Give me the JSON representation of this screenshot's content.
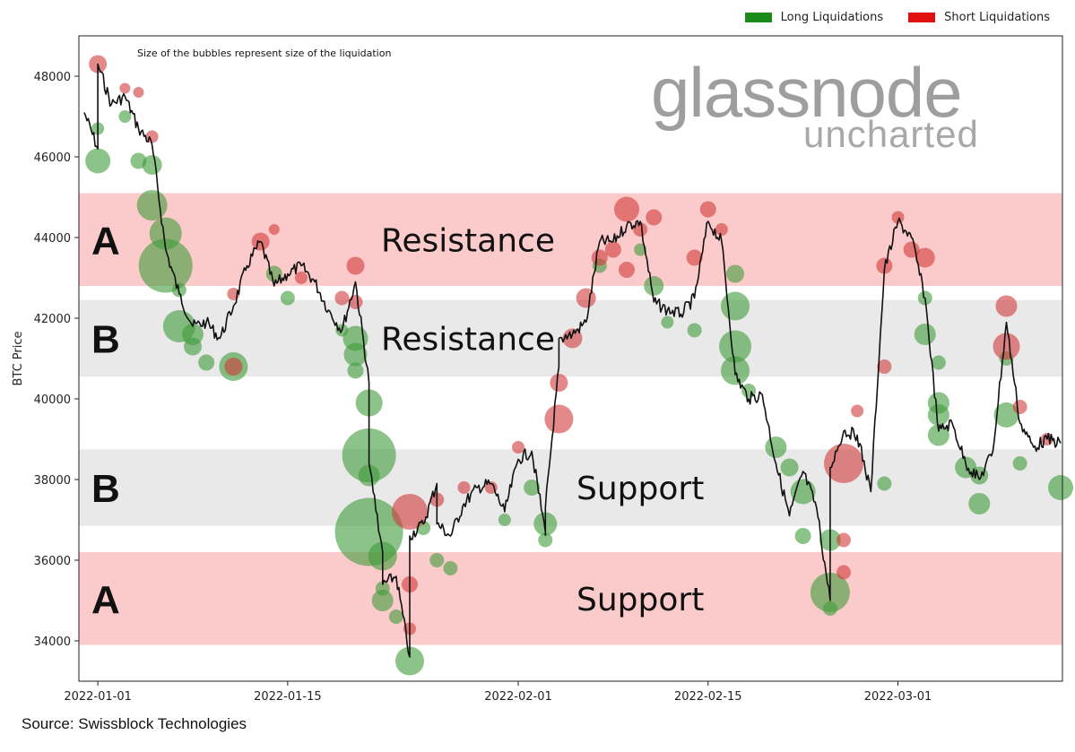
{
  "legend": {
    "long_label": "Long Liquidations",
    "short_label": "Short Liquidations",
    "long_color": "#1a8a1a",
    "short_color": "#e01010"
  },
  "note": "Size of the bubbles represent size of the liquidation",
  "watermark": {
    "line1": "glassnode",
    "line2": "uncharted"
  },
  "source": "Source: Swissblock Technologies",
  "chart_data": {
    "type": "scatter",
    "ylabel": "BTC Price",
    "xlabel": "",
    "ylim": [
      33000,
      49000
    ],
    "xlim": [
      "2021-12-31",
      "2022-03-13"
    ],
    "x_ticks": [
      "2022-01-01",
      "2022-01-15",
      "2022-02-01",
      "2022-02-15",
      "2022-03-01"
    ],
    "y_ticks": [
      34000,
      36000,
      38000,
      40000,
      42000,
      44000,
      46000,
      48000
    ],
    "zones": [
      {
        "label": "A",
        "text": "Resistance",
        "from": 42800,
        "to": 45100,
        "color": "#fbcaca"
      },
      {
        "label": "B",
        "text": "Resistance",
        "from": 40550,
        "to": 42450,
        "color": "#e9e9e9"
      },
      {
        "label": "B",
        "text": "Support",
        "from": 36850,
        "to": 38750,
        "color": "#e9e9e9"
      },
      {
        "label": "A",
        "text": "Support",
        "from": 33900,
        "to": 36200,
        "color": "#fbcaca"
      }
    ],
    "price_series": {
      "name": "BTC Price",
      "points": [
        [
          "2021-12-31",
          47100
        ],
        [
          "2022-01-01",
          46200
        ],
        [
          "2022-01-01",
          48300
        ],
        [
          "2022-01-02",
          47300
        ],
        [
          "2022-01-03",
          47500
        ],
        [
          "2022-01-04",
          46700
        ],
        [
          "2022-01-05",
          46300
        ],
        [
          "2022-01-06",
          43700
        ],
        [
          "2022-01-07",
          42600
        ],
        [
          "2022-01-08",
          41800
        ],
        [
          "2022-01-09",
          41900
        ],
        [
          "2022-01-10",
          41500
        ],
        [
          "2022-01-11",
          42300
        ],
        [
          "2022-01-12",
          43300
        ],
        [
          "2022-01-13",
          43900
        ],
        [
          "2022-01-14",
          42800
        ],
        [
          "2022-01-15",
          43100
        ],
        [
          "2022-01-16",
          43300
        ],
        [
          "2022-01-17",
          42900
        ],
        [
          "2022-01-18",
          42200
        ],
        [
          "2022-01-19",
          41700
        ],
        [
          "2022-01-20",
          42900
        ],
        [
          "2022-01-21",
          40400
        ],
        [
          "2022-01-21",
          38400
        ],
        [
          "2022-01-22",
          36200
        ],
        [
          "2022-01-22",
          35400
        ],
        [
          "2022-01-23",
          35600
        ],
        [
          "2022-01-24",
          33600
        ],
        [
          "2022-01-24",
          36600
        ],
        [
          "2022-01-25",
          36900
        ],
        [
          "2022-01-26",
          37900
        ],
        [
          "2022-01-26",
          36900
        ],
        [
          "2022-01-27",
          36600
        ],
        [
          "2022-01-28",
          37400
        ],
        [
          "2022-01-29",
          37800
        ],
        [
          "2022-01-30",
          37900
        ],
        [
          "2022-01-31",
          37200
        ],
        [
          "2022-02-01",
          38500
        ],
        [
          "2022-02-02",
          38700
        ],
        [
          "2022-02-03",
          36700
        ],
        [
          "2022-02-03",
          37300
        ],
        [
          "2022-02-04",
          40800
        ],
        [
          "2022-02-04",
          41500
        ],
        [
          "2022-02-05",
          41600
        ],
        [
          "2022-02-06",
          41900
        ],
        [
          "2022-02-07",
          43900
        ],
        [
          "2022-02-08",
          43900
        ],
        [
          "2022-02-09",
          44300
        ],
        [
          "2022-02-10",
          44400
        ],
        [
          "2022-02-11",
          42400
        ],
        [
          "2022-02-12",
          42200
        ],
        [
          "2022-02-13",
          42100
        ],
        [
          "2022-02-14",
          42500
        ],
        [
          "2022-02-15",
          44400
        ],
        [
          "2022-02-16",
          43900
        ],
        [
          "2022-02-17",
          40600
        ],
        [
          "2022-02-18",
          40000
        ],
        [
          "2022-02-19",
          40100
        ],
        [
          "2022-02-20",
          38400
        ],
        [
          "2022-02-21",
          37100
        ],
        [
          "2022-02-22",
          38200
        ],
        [
          "2022-02-23",
          37300
        ],
        [
          "2022-02-24",
          35000
        ],
        [
          "2022-02-24",
          38300
        ],
        [
          "2022-02-25",
          39200
        ],
        [
          "2022-02-26",
          39100
        ],
        [
          "2022-02-27",
          37700
        ],
        [
          "2022-02-28",
          43200
        ],
        [
          "2022-03-01",
          44400
        ],
        [
          "2022-03-02",
          44000
        ],
        [
          "2022-03-03",
          42500
        ],
        [
          "2022-03-04",
          39200
        ],
        [
          "2022-03-05",
          39400
        ],
        [
          "2022-03-06",
          38400
        ],
        [
          "2022-03-07",
          38000
        ],
        [
          "2022-03-08",
          38700
        ],
        [
          "2022-03-09",
          41900
        ],
        [
          "2022-03-10",
          39400
        ],
        [
          "2022-03-11",
          38800
        ],
        [
          "2022-03-12",
          39000
        ],
        [
          "2022-03-13",
          38900
        ]
      ]
    },
    "series": [
      {
        "name": "Long Liquidations",
        "points": [
          [
            "2022-01-01",
            45900,
            14
          ],
          [
            "2022-01-01",
            46700,
            7
          ],
          [
            "2022-01-03",
            47000,
            7
          ],
          [
            "2022-01-04",
            45900,
            9
          ],
          [
            "2022-01-05",
            45800,
            11
          ],
          [
            "2022-01-05",
            44800,
            17
          ],
          [
            "2022-01-06",
            44100,
            18
          ],
          [
            "2022-01-06",
            43300,
            30
          ],
          [
            "2022-01-07",
            42700,
            8
          ],
          [
            "2022-01-07",
            41800,
            18
          ],
          [
            "2022-01-08",
            41600,
            12
          ],
          [
            "2022-01-08",
            41300,
            10
          ],
          [
            "2022-01-09",
            40900,
            9
          ],
          [
            "2022-01-11",
            40800,
            16
          ],
          [
            "2022-01-14",
            43100,
            9
          ],
          [
            "2022-01-15",
            42500,
            8
          ],
          [
            "2022-01-19",
            41700,
            7
          ],
          [
            "2022-01-20",
            41500,
            14
          ],
          [
            "2022-01-20",
            41100,
            13
          ],
          [
            "2022-01-20",
            40700,
            9
          ],
          [
            "2022-01-21",
            39900,
            15
          ],
          [
            "2022-01-21",
            38600,
            30
          ],
          [
            "2022-01-21",
            38100,
            12
          ],
          [
            "2022-01-21",
            36700,
            38
          ],
          [
            "2022-01-22",
            36100,
            16
          ],
          [
            "2022-01-22",
            35300,
            8
          ],
          [
            "2022-01-22",
            35000,
            12
          ],
          [
            "2022-01-23",
            34600,
            8
          ],
          [
            "2022-01-24",
            33500,
            16
          ],
          [
            "2022-01-25",
            36800,
            8
          ],
          [
            "2022-01-26",
            36000,
            8
          ],
          [
            "2022-01-27",
            35800,
            8
          ],
          [
            "2022-01-31",
            37000,
            7
          ],
          [
            "2022-02-02",
            37800,
            9
          ],
          [
            "2022-02-03",
            36900,
            13
          ],
          [
            "2022-02-03",
            36500,
            8
          ],
          [
            "2022-02-07",
            43300,
            8
          ],
          [
            "2022-02-10",
            43700,
            7
          ],
          [
            "2022-02-11",
            42800,
            11
          ],
          [
            "2022-02-12",
            41900,
            7
          ],
          [
            "2022-02-14",
            41700,
            8
          ],
          [
            "2022-02-17",
            43100,
            10
          ],
          [
            "2022-02-17",
            42300,
            16
          ],
          [
            "2022-02-17",
            41300,
            18
          ],
          [
            "2022-02-17",
            40700,
            16
          ],
          [
            "2022-02-18",
            40200,
            8
          ],
          [
            "2022-02-20",
            38800,
            12
          ],
          [
            "2022-02-21",
            38300,
            10
          ],
          [
            "2022-02-22",
            37700,
            14
          ],
          [
            "2022-02-22",
            36600,
            9
          ],
          [
            "2022-02-24",
            36500,
            12
          ],
          [
            "2022-02-24",
            35200,
            22
          ],
          [
            "2022-02-24",
            34800,
            8
          ],
          [
            "2022-02-28",
            37900,
            8
          ],
          [
            "2022-03-03",
            42500,
            8
          ],
          [
            "2022-03-03",
            41600,
            12
          ],
          [
            "2022-03-04",
            40900,
            8
          ],
          [
            "2022-03-04",
            39900,
            12
          ],
          [
            "2022-03-04",
            39600,
            12
          ],
          [
            "2022-03-04",
            39100,
            12
          ],
          [
            "2022-03-06",
            38300,
            12
          ],
          [
            "2022-03-07",
            38100,
            10
          ],
          [
            "2022-03-07",
            37400,
            12
          ],
          [
            "2022-03-09",
            39600,
            14
          ],
          [
            "2022-03-09",
            41000,
            8
          ],
          [
            "2022-03-10",
            38400,
            8
          ],
          [
            "2022-03-13",
            37800,
            14
          ]
        ]
      },
      {
        "name": "Short Liquidations",
        "points": [
          [
            "2022-01-01",
            48300,
            10
          ],
          [
            "2022-01-03",
            47700,
            6
          ],
          [
            "2022-01-04",
            47600,
            6
          ],
          [
            "2022-01-05",
            46500,
            7
          ],
          [
            "2022-01-11",
            40800,
            10
          ],
          [
            "2022-01-11",
            42600,
            7
          ],
          [
            "2022-01-13",
            43900,
            10
          ],
          [
            "2022-01-14",
            44200,
            6
          ],
          [
            "2022-01-16",
            43000,
            7
          ],
          [
            "2022-01-20",
            43300,
            10
          ],
          [
            "2022-01-20",
            42400,
            8
          ],
          [
            "2022-01-19",
            42500,
            8
          ],
          [
            "2022-01-24",
            37200,
            20
          ],
          [
            "2022-01-24",
            35400,
            9
          ],
          [
            "2022-01-24",
            34300,
            7
          ],
          [
            "2022-01-26",
            37500,
            8
          ],
          [
            "2022-01-28",
            37800,
            7
          ],
          [
            "2022-01-30",
            37800,
            7
          ],
          [
            "2022-02-01",
            38800,
            7
          ],
          [
            "2022-02-04",
            39500,
            16
          ],
          [
            "2022-02-04",
            40400,
            10
          ],
          [
            "2022-02-05",
            41500,
            11
          ],
          [
            "2022-02-06",
            42500,
            11
          ],
          [
            "2022-02-07",
            43500,
            9
          ],
          [
            "2022-02-08",
            43700,
            9
          ],
          [
            "2022-02-09",
            44700,
            14
          ],
          [
            "2022-02-09",
            43200,
            9
          ],
          [
            "2022-02-10",
            44200,
            8
          ],
          [
            "2022-02-11",
            44500,
            9
          ],
          [
            "2022-02-14",
            43500,
            9
          ],
          [
            "2022-02-15",
            44700,
            9
          ],
          [
            "2022-02-16",
            44200,
            7
          ],
          [
            "2022-02-25",
            38400,
            22
          ],
          [
            "2022-02-25",
            36500,
            8
          ],
          [
            "2022-02-25",
            35700,
            8
          ],
          [
            "2022-02-26",
            39700,
            7
          ],
          [
            "2022-02-28",
            40800,
            8
          ],
          [
            "2022-02-28",
            43300,
            9
          ],
          [
            "2022-03-01",
            44500,
            7
          ],
          [
            "2022-03-02",
            43700,
            9
          ],
          [
            "2022-03-03",
            43500,
            11
          ],
          [
            "2022-03-09",
            42300,
            12
          ],
          [
            "2022-03-09",
            41300,
            15
          ],
          [
            "2022-03-10",
            39800,
            8
          ],
          [
            "2022-03-12",
            39000,
            7
          ]
        ]
      }
    ]
  }
}
